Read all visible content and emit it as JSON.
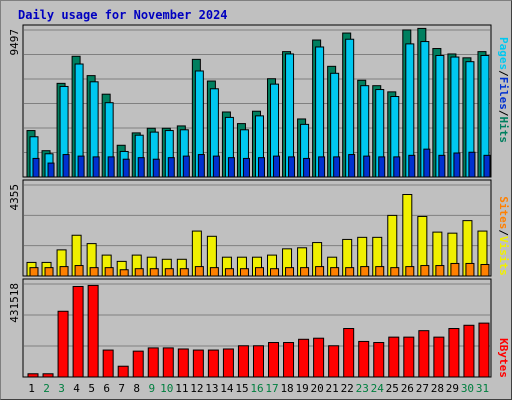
{
  "title": "Daily usage for November 2024",
  "colors": {
    "hits": "#007f5f",
    "files": "#00c8f0",
    "pages": "#0030d0",
    "visits": "#f0f000",
    "sites": "#ff8000",
    "kbytes": "#ff0000",
    "weekend_day_label": "#007f3f",
    "weekday_label": "#000000"
  },
  "chart_data": [
    {
      "type": "bar",
      "name": "hits-files-pages",
      "ymax": 9497,
      "ytick_label": "9497",
      "side_label": {
        "hits": "Hits",
        "files": "Files",
        "pages": "Pages",
        "sep": "/"
      },
      "categories": [
        "1",
        "2",
        "3",
        "4",
        "5",
        "6",
        "7",
        "8",
        "9",
        "10",
        "11",
        "12",
        "13",
        "14",
        "15",
        "16",
        "17",
        "18",
        "19",
        "20",
        "21",
        "22",
        "23",
        "24",
        "25",
        "26",
        "27",
        "28",
        "29",
        "30",
        "31"
      ],
      "series": [
        {
          "name": "Hits",
          "values": [
            3000,
            1700,
            6050,
            7800,
            6550,
            5350,
            2050,
            2850,
            3150,
            3150,
            3300,
            7600,
            6200,
            4200,
            3450,
            4250,
            6350,
            8100,
            3750,
            8850,
            7150,
            9300,
            6250,
            5900,
            5500,
            9500,
            9600,
            8300,
            7950,
            7700,
            8100
          ]
        },
        {
          "name": "Files",
          "values": [
            2600,
            1500,
            5850,
            7300,
            6150,
            4800,
            1650,
            2700,
            2900,
            3000,
            3050,
            6850,
            5700,
            3850,
            3050,
            3950,
            6000,
            7950,
            3400,
            8400,
            6700,
            8900,
            5900,
            5650,
            5200,
            8600,
            8750,
            7850,
            7750,
            7450,
            7850
          ]
        },
        {
          "name": "Pages",
          "values": [
            1200,
            900,
            1450,
            1350,
            1300,
            1300,
            1150,
            1250,
            1150,
            1250,
            1350,
            1450,
            1350,
            1250,
            1200,
            1250,
            1350,
            1300,
            1200,
            1300,
            1300,
            1450,
            1350,
            1300,
            1300,
            1400,
            1800,
            1400,
            1550,
            1600,
            1400
          ]
        }
      ]
    },
    {
      "type": "bar",
      "name": "visits-sites",
      "ymax": 4355,
      "ytick_label": "4355",
      "side_label": {
        "visits": "Visits",
        "sites": "Sites",
        "sep": "/"
      },
      "categories": [
        "1",
        "2",
        "3",
        "4",
        "5",
        "6",
        "7",
        "8",
        "9",
        "10",
        "11",
        "12",
        "13",
        "14",
        "15",
        "16",
        "17",
        "18",
        "19",
        "20",
        "21",
        "22",
        "23",
        "24",
        "25",
        "26",
        "27",
        "28",
        "29",
        "30",
        "31"
      ],
      "series": [
        {
          "name": "Visits",
          "values": [
            650,
            650,
            1250,
            1950,
            1550,
            1000,
            700,
            1000,
            900,
            800,
            800,
            2150,
            1900,
            900,
            900,
            900,
            1000,
            1300,
            1350,
            1600,
            900,
            1750,
            1850,
            1850,
            2900,
            3900,
            2850,
            2100,
            2050,
            2650,
            2150
          ]
        },
        {
          "name": "Sites",
          "values": [
            400,
            400,
            450,
            500,
            400,
            400,
            300,
            350,
            350,
            350,
            350,
            450,
            400,
            350,
            350,
            400,
            350,
            400,
            400,
            450,
            400,
            400,
            450,
            450,
            400,
            450,
            500,
            500,
            600,
            600,
            550
          ]
        }
      ]
    },
    {
      "type": "bar",
      "name": "kbytes",
      "ymax": 431518,
      "ytick_label": "431518",
      "side_label": {
        "kbytes": "KBytes"
      },
      "categories": [
        "1",
        "2",
        "3",
        "4",
        "5",
        "6",
        "7",
        "8",
        "9",
        "10",
        "11",
        "12",
        "13",
        "14",
        "15",
        "16",
        "17",
        "18",
        "19",
        "20",
        "21",
        "22",
        "23",
        "24",
        "25",
        "26",
        "27",
        "28",
        "29",
        "30",
        "31"
      ],
      "series": [
        {
          "name": "KBytes",
          "values": [
            15000,
            15000,
            305000,
            420000,
            425000,
            125000,
            50000,
            120000,
            135000,
            135000,
            130000,
            125000,
            125000,
            130000,
            145000,
            145000,
            160000,
            160000,
            175000,
            180000,
            145000,
            225000,
            165000,
            160000,
            185000,
            185000,
            215000,
            185000,
            225000,
            240000,
            250000
          ]
        }
      ]
    }
  ],
  "x_labels": [
    "1",
    "2",
    "3",
    "4",
    "5",
    "6",
    "7",
    "8",
    "9",
    "10",
    "11",
    "12",
    "13",
    "14",
    "15",
    "16",
    "17",
    "18",
    "19",
    "20",
    "21",
    "22",
    "23",
    "24",
    "25",
    "26",
    "27",
    "28",
    "29",
    "30",
    "31"
  ],
  "weekend_days": [
    "2",
    "3",
    "9",
    "10",
    "16",
    "17",
    "23",
    "24",
    "30",
    "31"
  ]
}
